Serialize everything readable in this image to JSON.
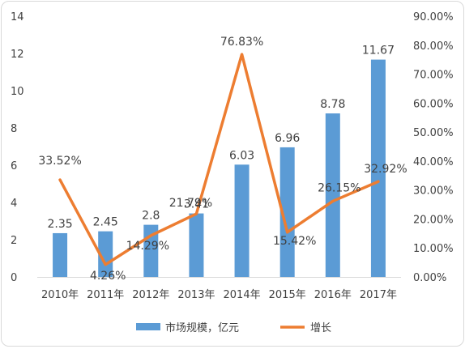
{
  "chart_data": {
    "type": "bar",
    "categories": [
      "2010年",
      "2011年",
      "2012年",
      "2013年",
      "2014年",
      "2015年",
      "2016年",
      "2017年"
    ],
    "series": [
      {
        "name": "市场规模，亿元",
        "type": "bar",
        "axis": "left",
        "color": "#5B9BD5",
        "values": [
          2.35,
          2.45,
          2.8,
          3.41,
          6.03,
          6.96,
          8.78,
          11.67
        ],
        "labels": [
          "2.35",
          "2.45",
          "2.8",
          "3.41",
          "6.03",
          "6.96",
          "8.78",
          "11.67"
        ]
      },
      {
        "name": "增长",
        "type": "line",
        "axis": "right",
        "color": "#ED7D31",
        "values": [
          33.52,
          4.26,
          14.29,
          21.79,
          76.83,
          15.42,
          26.15,
          32.92
        ],
        "labels": [
          "33.52%",
          "4.26%",
          "14.29%",
          "21.79%",
          "76.83%",
          "15.42%",
          "26.15%",
          "32.92%"
        ]
      }
    ],
    "y_left": {
      "min": 0,
      "max": 14,
      "ticks": [
        "0",
        "2",
        "4",
        "6",
        "8",
        "10",
        "12",
        "14"
      ]
    },
    "y_right": {
      "min": 0,
      "max": 90,
      "ticks": [
        "0.00%",
        "10.00%",
        "20.00%",
        "30.00%",
        "40.00%",
        "50.00%",
        "60.00%",
        "70.00%",
        "80.00%",
        "90.00%"
      ]
    },
    "grid": false,
    "legend_position": "bottom"
  }
}
